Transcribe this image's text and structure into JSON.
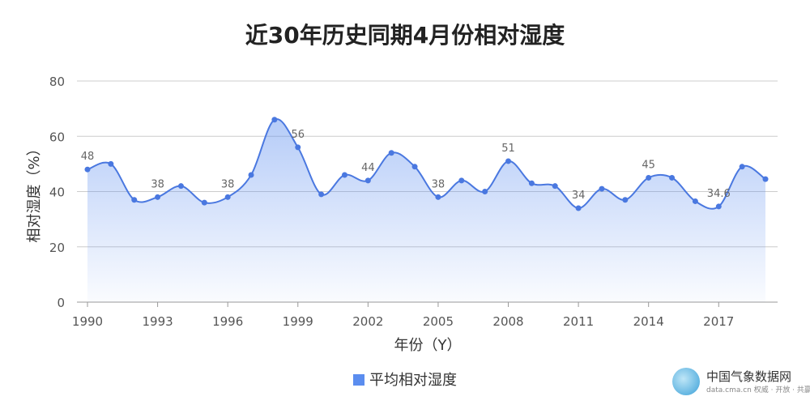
{
  "chart_data": {
    "type": "area",
    "title": "近30年历史同期4月份相对湿度",
    "xlabel": "年份（Y）",
    "ylabel": "相对湿度（%）",
    "ylim": [
      0,
      80
    ],
    "yticks": [
      "0",
      "20",
      "40",
      "60",
      "80"
    ],
    "xtick_labels": [
      "1990",
      "1993",
      "1996",
      "1999",
      "2002",
      "2005",
      "2008",
      "2011",
      "2014",
      "2017"
    ],
    "x": [
      1990,
      1991,
      1992,
      1993,
      1994,
      1995,
      1996,
      1997,
      1998,
      1999,
      2000,
      2001,
      2002,
      2003,
      2004,
      2005,
      2006,
      2007,
      2008,
      2009,
      2010,
      2011,
      2012,
      2013,
      2014,
      2015,
      2016,
      2017,
      2018,
      2019
    ],
    "series": [
      {
        "name": "平均相对湿度",
        "values": [
          48,
          50,
          37,
          38,
          42,
          36,
          38,
          46,
          66,
          56,
          39,
          46,
          44,
          54,
          49,
          38,
          44,
          40,
          51,
          43,
          42,
          34,
          41,
          37,
          45,
          45,
          36.5,
          34.6,
          49,
          44.5
        ]
      }
    ],
    "data_labels": [
      {
        "year": 1990,
        "text": "48"
      },
      {
        "year": 1993,
        "text": "38"
      },
      {
        "year": 1996,
        "text": "38"
      },
      {
        "year": 1999,
        "text": "56"
      },
      {
        "year": 2002,
        "text": "44"
      },
      {
        "year": 2005,
        "text": "38"
      },
      {
        "year": 2008,
        "text": "51"
      },
      {
        "year": 2011,
        "text": "34"
      },
      {
        "year": 2014,
        "text": "45"
      },
      {
        "year": 2017,
        "text": "34.6"
      }
    ],
    "grid": true,
    "legend_position": "bottom-center",
    "line_color": "#4a78e0",
    "fill_color": "#5b8def"
  },
  "brand": {
    "name": "中国气象数据网",
    "sub": "data.cma.cn 权威 · 开放 · 共赢"
  }
}
